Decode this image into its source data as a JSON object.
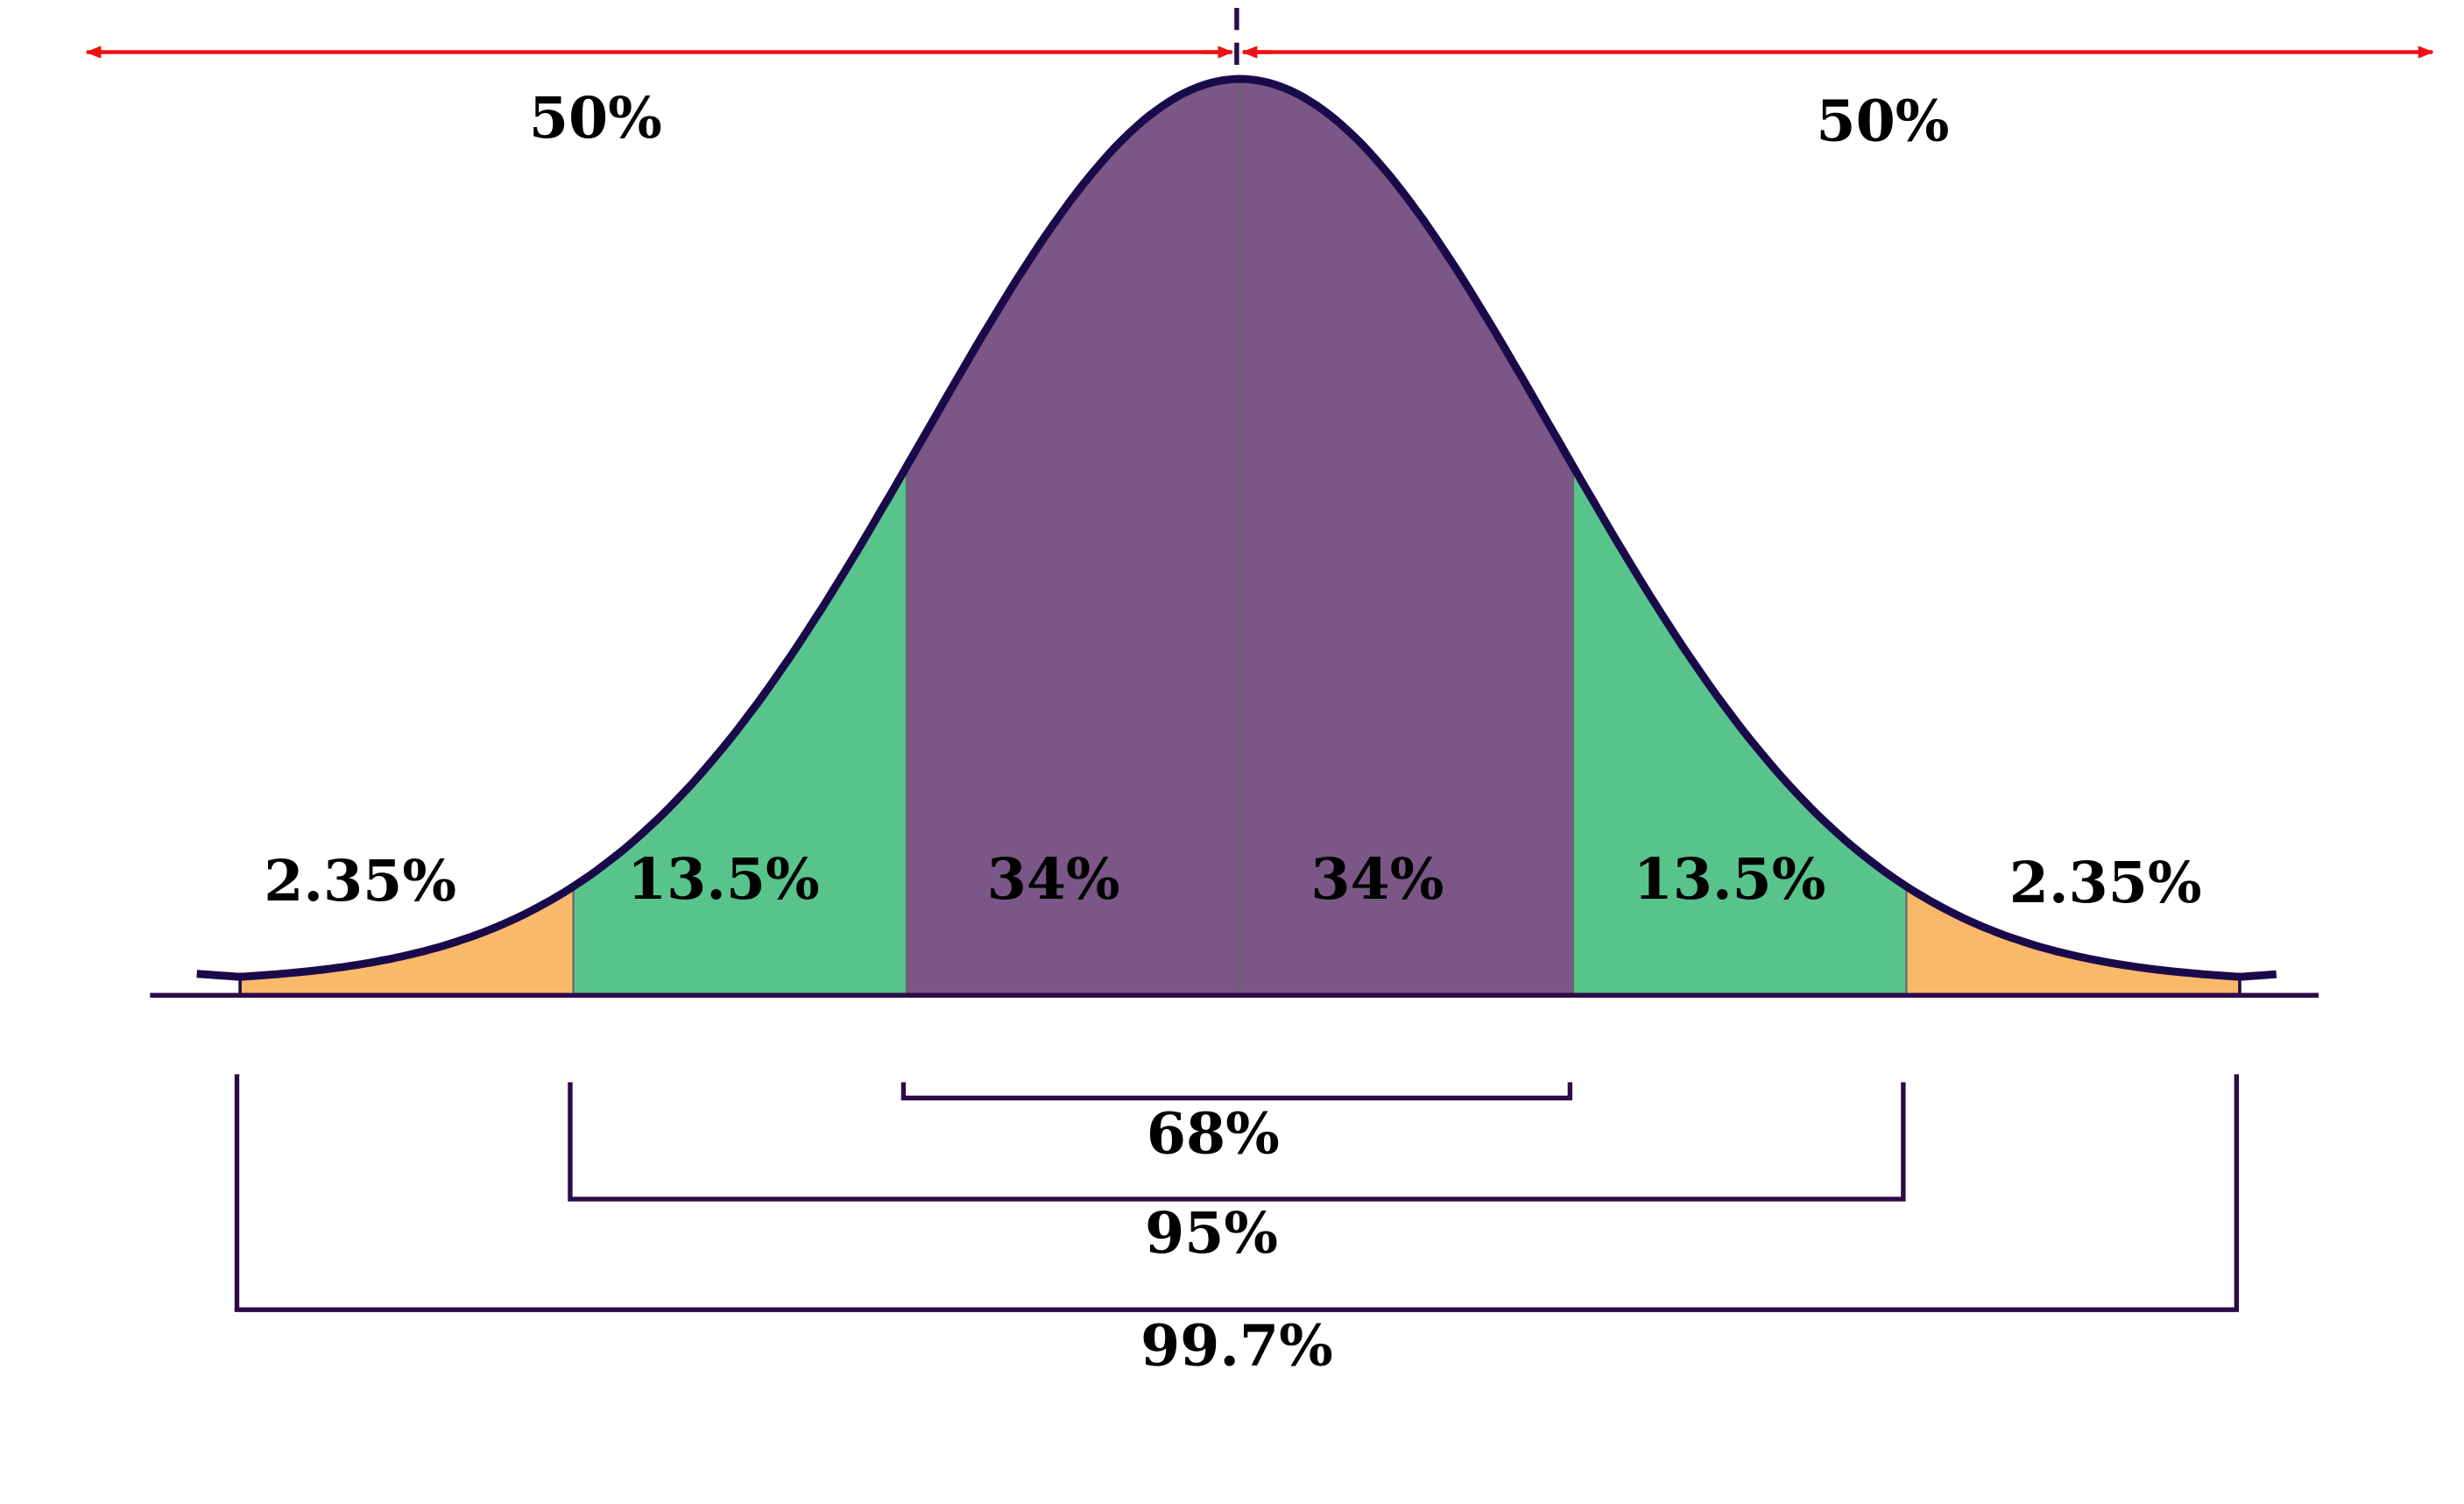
{
  "chart_data": {
    "type": "area",
    "distribution": "normal",
    "x_units": "standard deviations from mean",
    "bands": [
      {
        "from": -3,
        "to": -2,
        "label": "2.35%",
        "color": "#f9b96b"
      },
      {
        "from": -2,
        "to": -1,
        "label": "13.5%",
        "color": "#58c48c"
      },
      {
        "from": -1,
        "to": 0,
        "label": "34%",
        "color": "#7a5786"
      },
      {
        "from": 0,
        "to": 1,
        "label": "34%",
        "color": "#7a5786"
      },
      {
        "from": 1,
        "to": 2,
        "label": "13.5%",
        "color": "#58c48c"
      },
      {
        "from": 2,
        "to": 3,
        "label": "2.35%",
        "color": "#f9b96b"
      }
    ],
    "halves": [
      {
        "side": "left",
        "label": "50%"
      },
      {
        "side": "right",
        "label": "50%"
      }
    ],
    "ranges": [
      {
        "from": -1,
        "to": 1,
        "label": "68%"
      },
      {
        "from": -2,
        "to": 2,
        "label": "95%"
      },
      {
        "from": -3,
        "to": 3,
        "label": "99.7%"
      }
    ],
    "colors": {
      "curve": "#1a0a4a",
      "arrow": "#ee1111",
      "bracket": "#2d0a4a",
      "axis": "#2d0a4a"
    }
  }
}
